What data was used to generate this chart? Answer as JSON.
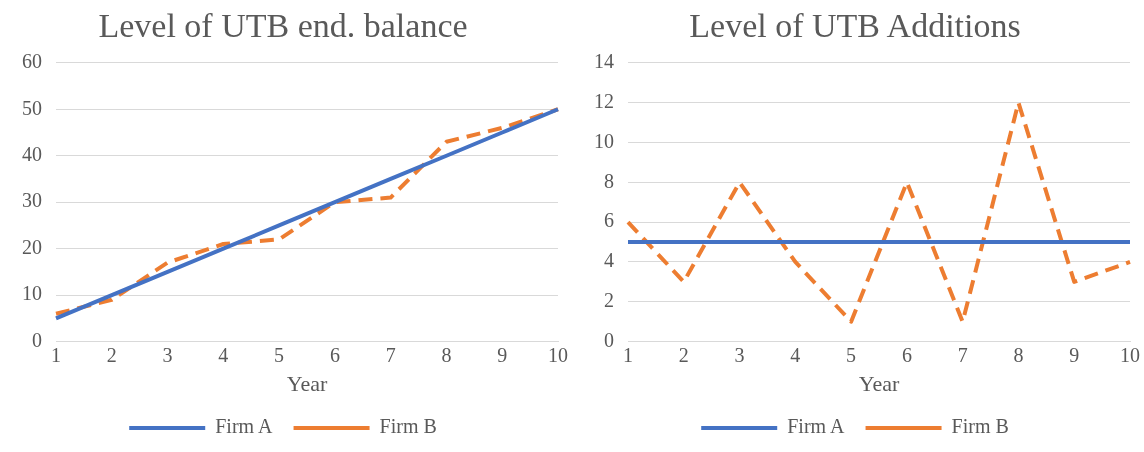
{
  "chart_data": [
    {
      "type": "line",
      "title": "Level of UTB end. balance",
      "xlabel": "Year",
      "categories": [
        "1",
        "2",
        "3",
        "4",
        "5",
        "6",
        "7",
        "8",
        "9",
        "10"
      ],
      "ylim": [
        0,
        60
      ],
      "yticks": [
        0,
        10,
        20,
        30,
        40,
        50,
        60
      ],
      "grid": "y",
      "legend": "bottom",
      "marker": "none",
      "series": [
        {
          "name": "Firm A",
          "color": "#4472c4",
          "line_style": "solid",
          "values": [
            5,
            10,
            15,
            20,
            25,
            30,
            35,
            40,
            45,
            50
          ]
        },
        {
          "name": "Firm B",
          "color": "#ed7d31",
          "line_style": "dashed",
          "values": [
            6,
            9,
            17,
            21,
            22,
            30,
            31,
            43,
            46,
            50
          ]
        }
      ]
    },
    {
      "type": "line",
      "title": "Level of UTB Additions",
      "xlabel": "Year",
      "categories": [
        "1",
        "2",
        "3",
        "4",
        "5",
        "6",
        "7",
        "8",
        "9",
        "10"
      ],
      "ylim": [
        0,
        14
      ],
      "yticks": [
        0,
        2,
        4,
        6,
        8,
        10,
        12,
        14
      ],
      "grid": "y",
      "legend": "bottom",
      "marker": "none",
      "series": [
        {
          "name": "Firm A",
          "color": "#4472c4",
          "line_style": "solid",
          "values": [
            5,
            5,
            5,
            5,
            5,
            5,
            5,
            5,
            5,
            5
          ]
        },
        {
          "name": "Firm B",
          "color": "#ed7d31",
          "line_style": "dashed",
          "values": [
            6,
            3,
            8,
            4,
            1,
            8,
            1,
            12,
            3,
            4
          ]
        }
      ]
    }
  ]
}
